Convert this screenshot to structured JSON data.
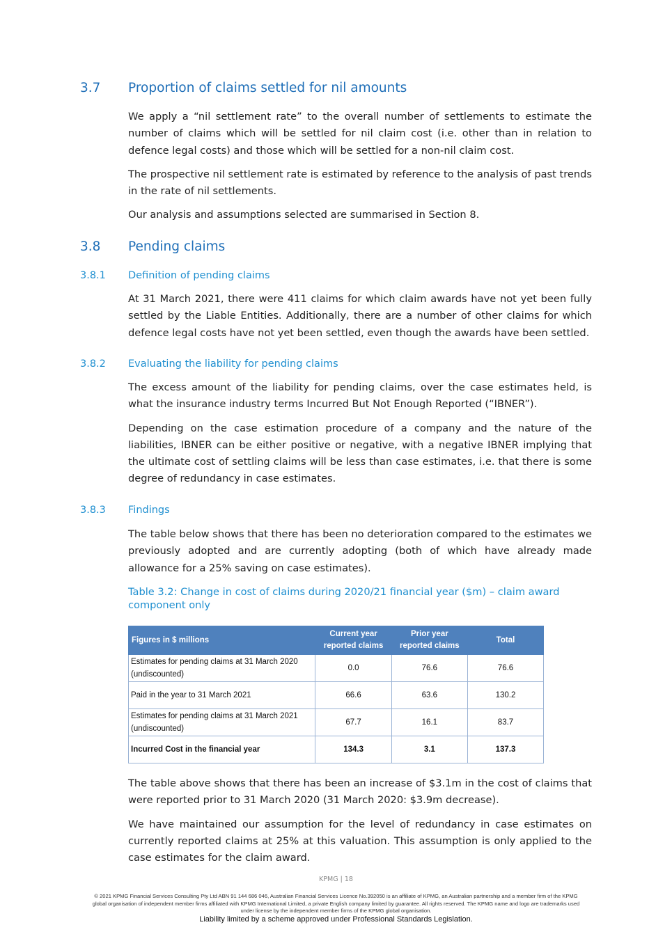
{
  "s37": {
    "num": "3.7",
    "title": "Proportion of claims settled for nil amounts",
    "paras": [
      "We apply a “nil settlement rate” to the overall number of settlements to estimate the number of claims which will be settled for nil claim cost (i.e. other than in relation to defence legal costs) and those which will be settled for a non-nil claim cost.",
      "The prospective nil settlement rate is estimated by reference to the analysis of past trends in the rate of nil settlements.",
      "Our analysis and assumptions selected are summarised in Section 8."
    ]
  },
  "s38": {
    "num": "3.8",
    "title": "Pending claims"
  },
  "s381": {
    "num": "3.8.1",
    "title": "Definition of pending claims",
    "paras": [
      "At 31 March 2021, there were 411 claims for which claim awards have not yet been fully settled by the Liable Entities. Additionally, there are a number of other claims for which defence legal costs have not yet been settled, even though the awards have been settled."
    ]
  },
  "s382": {
    "num": "3.8.2",
    "title": "Evaluating the liability for pending claims",
    "paras": [
      "The excess amount of the liability for pending claims, over the case estimates held, is what the insurance industry terms Incurred But Not Enough Reported (“IBNER”).",
      "Depending on the case estimation procedure of a company and the nature of the liabilities, IBNER can be either positive or negative, with a negative IBNER implying that the ultimate cost of settling claims will be less than case estimates, i.e. that there is some degree of redundancy in case estimates."
    ]
  },
  "s383": {
    "num": "3.8.3",
    "title": "Findings",
    "paras": [
      "The table below shows that there has been no deterioration compared to the estimates we previously adopted and are currently adopting (both of which have already made allowance for a 25% saving on case estimates)."
    ],
    "caption": "Table 3.2: Change in cost of claims during 2020/21 financial year ($m) – claim award component only",
    "after": [
      "The table above shows that there has been an increase of $3.1m in the cost of claims that were reported prior to 31 March 2020 (31 March 2020: $3.9m decrease).",
      "We have maintained our assumption for the level of redundancy in case estimates on currently reported claims at 25% at this valuation. This assumption is only applied to the case estimates for the claim award."
    ]
  },
  "table": {
    "headers": [
      "Figures in $ millions",
      "Current year reported claims",
      "Prior year reported claims",
      "Total"
    ],
    "rows": [
      [
        "Estimates for pending claims at 31 March 2020 (undiscounted)",
        "0.0",
        "76.6",
        "76.6"
      ],
      [
        "Paid in the year to 31 March 2021",
        "66.6",
        "63.6",
        "130.2"
      ],
      [
        "Estimates for pending claims at 31 March 2021 (undiscounted)",
        "67.7",
        "16.1",
        "83.7"
      ],
      [
        "Incurred Cost in the financial year",
        "134.3",
        "3.1",
        "137.3"
      ]
    ],
    "header_color": "#4f81bd"
  },
  "footer": {
    "page": "KPMG  |  18",
    "legal": "© 2021 KPMG Financial Services Consulting Pty Ltd ABN 91 144 686 046, Australian Financial Services Licence No.392050 is an affiliate of KPMG, an Australian partnership and a member firm of the KPMG global organisation of independent member firms affiliated with KPMG International Limited, a private English company limited by guarantee. All rights reserved. The KPMG name and logo are trademarks used under license by the independent member  firms of the KPMG global organisation.",
    "liability": "Liability limited by a scheme approved under Professional Standards Legislation."
  }
}
